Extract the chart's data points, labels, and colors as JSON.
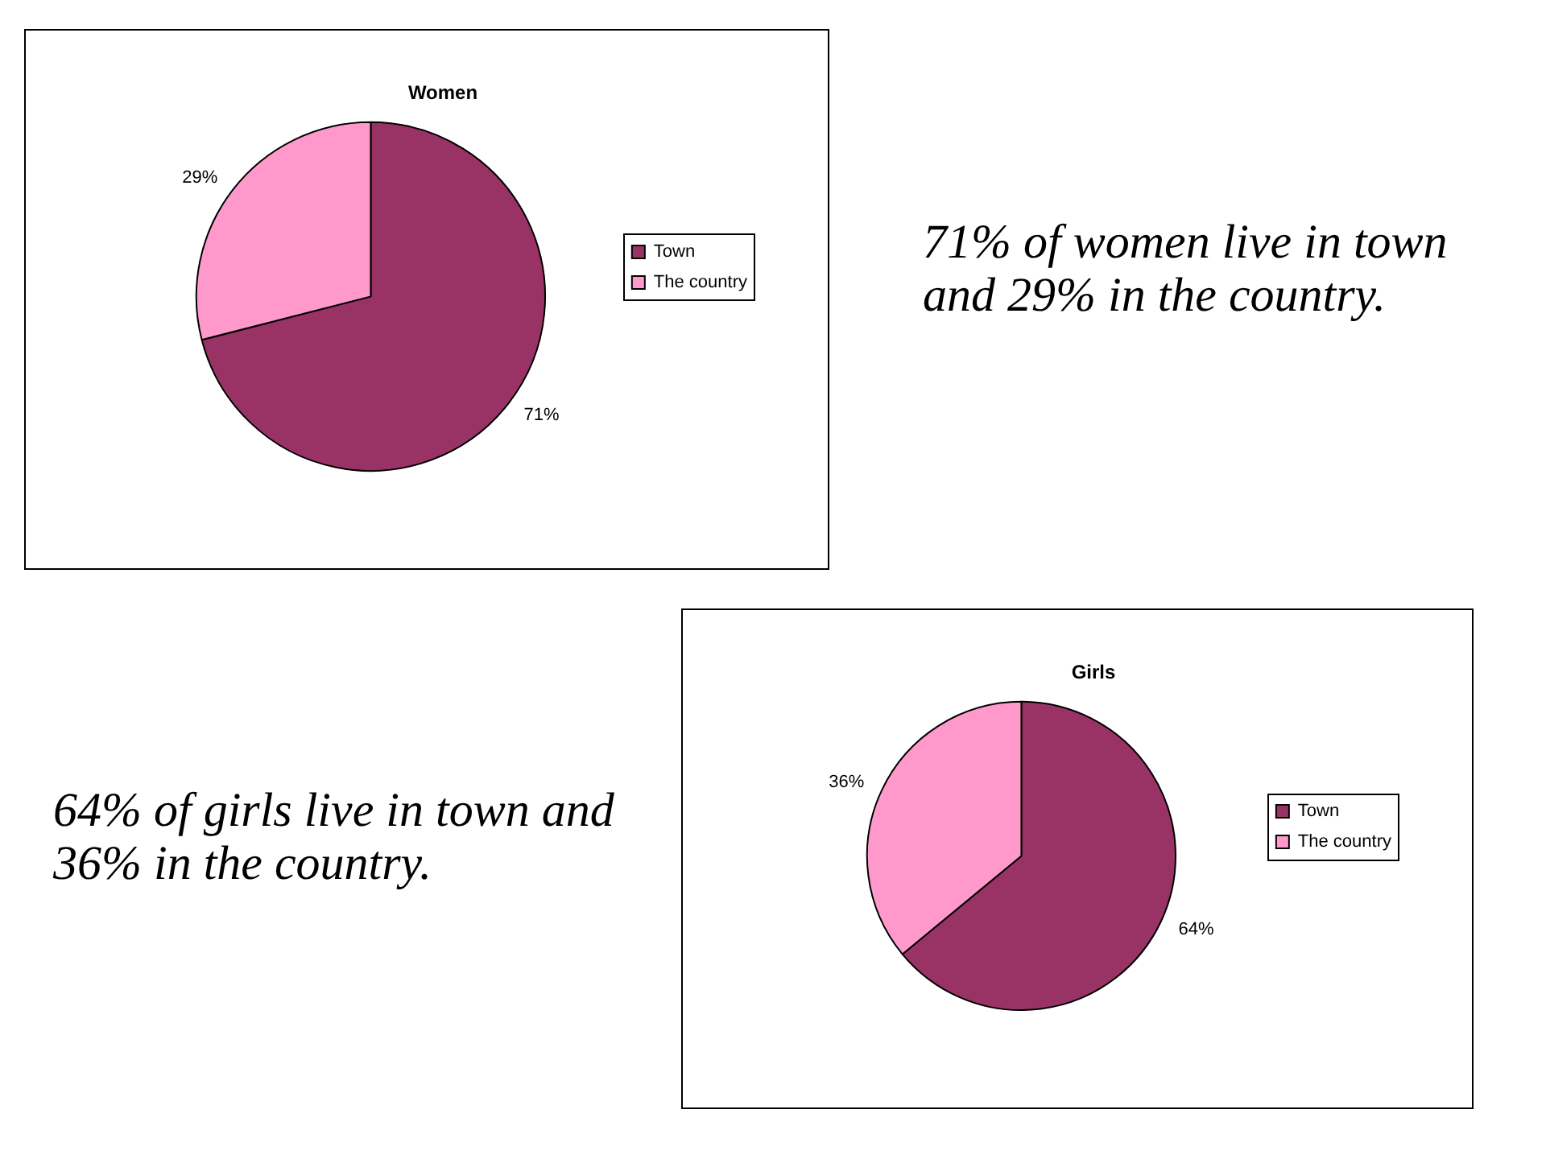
{
  "chart_data": [
    {
      "type": "pie",
      "title": "Women",
      "categories": [
        "Town",
        "The country"
      ],
      "values": [
        71,
        29
      ],
      "colors": [
        "#993366",
        "#ff99cc"
      ],
      "value_labels": [
        "71%",
        "29%"
      ],
      "legend": "right",
      "annotations": [
        "71% of women live in town and 29% in the country."
      ]
    },
    {
      "type": "pie",
      "title": "Girls",
      "categories": [
        "Town",
        "The country"
      ],
      "values": [
        64,
        36
      ],
      "colors": [
        "#993366",
        "#ff99cc"
      ],
      "value_labels": [
        "64%",
        "36%"
      ],
      "legend": "right",
      "annotations": [
        "64% of girls live in town and 36% in the country."
      ]
    }
  ]
}
